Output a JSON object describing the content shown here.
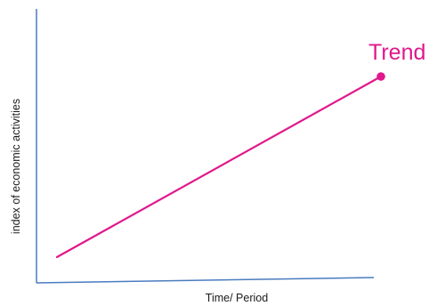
{
  "diagram": {
    "trend_label": "Trend",
    "x_axis_label": "Time/ Period",
    "y_axis_label": "index of economic activities"
  },
  "colors": {
    "axis": "#4a7bbf",
    "trend": "#e0188c",
    "text": "#1a1a1a"
  }
}
